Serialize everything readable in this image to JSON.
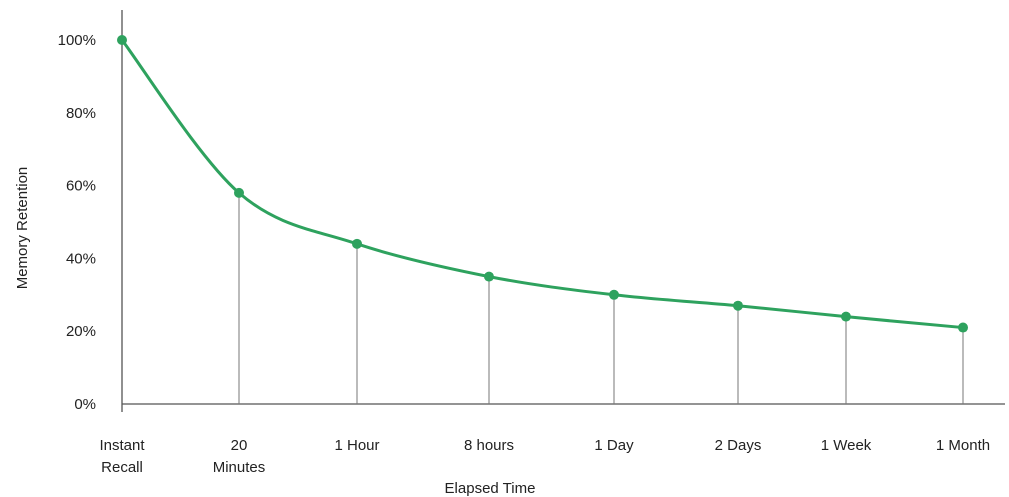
{
  "chart_data": {
    "type": "line",
    "title": "",
    "xlabel": "Elapsed Time",
    "ylabel": "Memory Retention",
    "categories": [
      [
        "Instant",
        "Recall"
      ],
      [
        "20",
        "Minutes"
      ],
      [
        "1 Hour"
      ],
      [
        "8 hours"
      ],
      [
        "1 Day"
      ],
      [
        "2 Days"
      ],
      [
        "1 Week"
      ],
      [
        "1 Month"
      ]
    ],
    "values": [
      100,
      58,
      44,
      35,
      30,
      27,
      24,
      21
    ],
    "ylim": [
      0,
      100
    ],
    "yticks": [
      0,
      20,
      40,
      60,
      80,
      100
    ],
    "ytick_labels": [
      "0%",
      "20%",
      "40%",
      "60%",
      "80%",
      "100%"
    ],
    "grid": false,
    "legend": "none",
    "colors": {
      "series": "#2ea25e",
      "axis": "#555555",
      "droplines": "#777777",
      "text": "#222222"
    }
  }
}
